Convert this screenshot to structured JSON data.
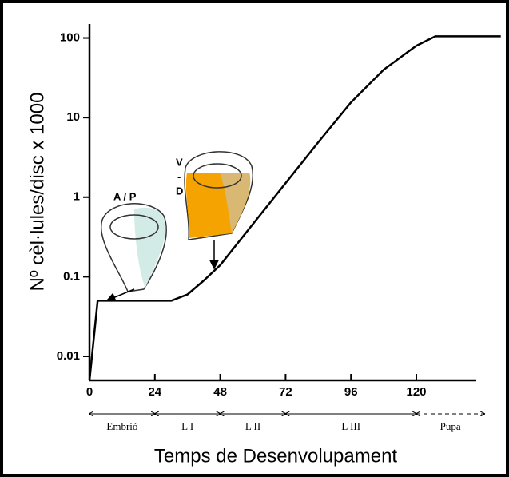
{
  "chart_data": {
    "type": "line",
    "log_y": true,
    "y_label": "Nº cèl·lules/disc x 1000",
    "x_label": "Temps de Desenvolupament",
    "x": [
      0,
      3,
      10,
      30,
      36,
      42,
      48,
      60,
      72,
      84,
      96,
      108,
      120,
      127,
      151
    ],
    "series": [
      {
        "color": "#000000",
        "values": [
          0.005,
          0.05,
          0.05,
          0.05,
          0.06,
          0.09,
          0.14,
          0.46,
          1.5,
          4.9,
          15.5,
          40,
          80,
          105,
          105
        ]
      }
    ],
    "xlim": [
      0,
      142
    ],
    "xticks": [
      0,
      24,
      48,
      72,
      96,
      120
    ],
    "ylim": [
      0.005,
      150
    ],
    "yticks": [
      0.01,
      0.1,
      1,
      10,
      100
    ],
    "annotations": {
      "ap": "A / P",
      "v": "V",
      "dash": "-",
      "d": "D"
    },
    "stages": [
      {
        "label": "Embrió",
        "start": 0,
        "end": 24,
        "style": "solid"
      },
      {
        "label": "L I",
        "start": 24,
        "end": 48,
        "style": "solid"
      },
      {
        "label": "L II",
        "start": 48,
        "end": 72,
        "style": "solid"
      },
      {
        "label": "L III",
        "start": 72,
        "end": 120,
        "style": "solid"
      },
      {
        "label": "Pupa",
        "start": 120,
        "end": 145,
        "style": "dashed"
      }
    ]
  }
}
